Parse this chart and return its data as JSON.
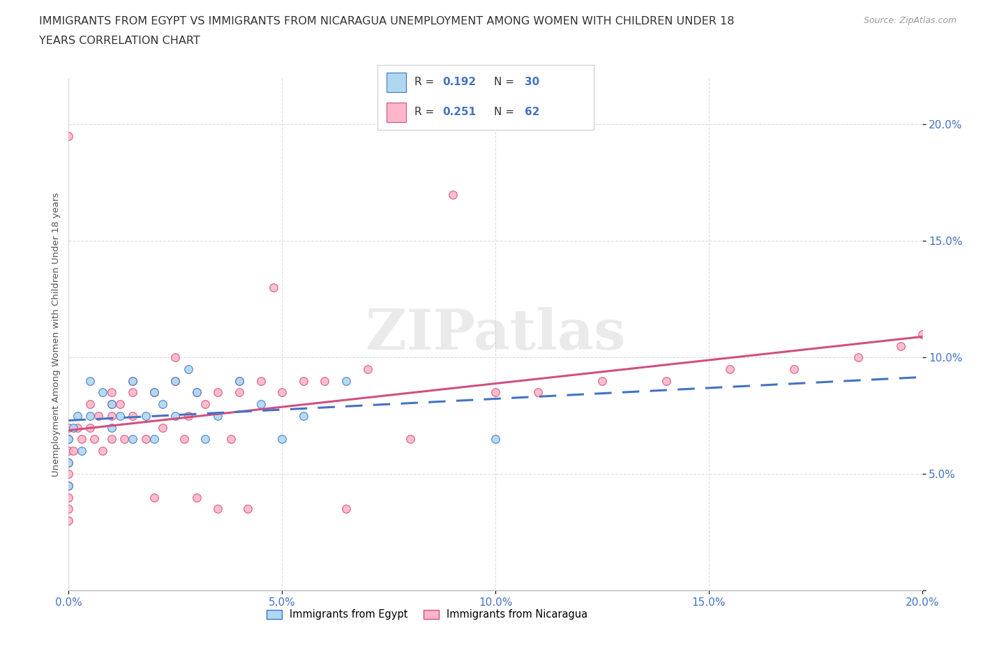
{
  "title": "IMMIGRANTS FROM EGYPT VS IMMIGRANTS FROM NICARAGUA UNEMPLOYMENT AMONG WOMEN WITH CHILDREN UNDER 18\nYEARS CORRELATION CHART",
  "source": "Source: ZipAtlas.com",
  "ylabel": "Unemployment Among Women with Children Under 18 years",
  "xlim": [
    0.0,
    0.2
  ],
  "ylim": [
    0.0,
    0.22
  ],
  "x_ticks": [
    0.0,
    0.05,
    0.1,
    0.15,
    0.2
  ],
  "y_ticks": [
    0.0,
    0.05,
    0.1,
    0.15,
    0.2
  ],
  "x_tick_labels": [
    "0.0%",
    "5.0%",
    "10.0%",
    "15.0%",
    "20.0%"
  ],
  "y_tick_labels": [
    "",
    "5.0%",
    "10.0%",
    "15.0%",
    "20.0%"
  ],
  "egypt_color": "#ADD8F0",
  "egypt_edge_color": "#4472C4",
  "nicaragua_color": "#FFB6C8",
  "nicaragua_edge_color": "#D05080",
  "egypt_R": 0.192,
  "egypt_N": 30,
  "nicaragua_R": 0.251,
  "nicaragua_N": 62,
  "egypt_line_color": "#4472C4",
  "nicaragua_line_color": "#D05080",
  "background_color": "#FFFFFF",
  "grid_color": "#DDDDDD",
  "watermark_text": "ZIPatlas",
  "egypt_x": [
    0.0,
    0.0,
    0.0,
    0.001,
    0.002,
    0.003,
    0.005,
    0.005,
    0.008,
    0.01,
    0.01,
    0.012,
    0.015,
    0.015,
    0.018,
    0.02,
    0.02,
    0.022,
    0.025,
    0.025,
    0.028,
    0.03,
    0.032,
    0.035,
    0.04,
    0.045,
    0.05,
    0.055,
    0.065,
    0.1
  ],
  "egypt_y": [
    0.065,
    0.055,
    0.045,
    0.07,
    0.075,
    0.06,
    0.09,
    0.075,
    0.085,
    0.08,
    0.07,
    0.075,
    0.09,
    0.065,
    0.075,
    0.085,
    0.065,
    0.08,
    0.09,
    0.075,
    0.095,
    0.085,
    0.065,
    0.075,
    0.09,
    0.08,
    0.065,
    0.075,
    0.09,
    0.065
  ],
  "nicaragua_x": [
    0.0,
    0.0,
    0.0,
    0.0,
    0.0,
    0.0,
    0.0,
    0.0,
    0.0,
    0.0,
    0.001,
    0.002,
    0.003,
    0.005,
    0.005,
    0.006,
    0.007,
    0.008,
    0.01,
    0.01,
    0.01,
    0.01,
    0.012,
    0.013,
    0.015,
    0.015,
    0.015,
    0.018,
    0.02,
    0.02,
    0.022,
    0.025,
    0.025,
    0.027,
    0.028,
    0.03,
    0.03,
    0.032,
    0.035,
    0.035,
    0.038,
    0.04,
    0.04,
    0.042,
    0.045,
    0.048,
    0.05,
    0.055,
    0.06,
    0.065,
    0.07,
    0.08,
    0.09,
    0.1,
    0.11,
    0.125,
    0.14,
    0.155,
    0.17,
    0.185,
    0.195,
    0.2
  ],
  "nicaragua_y": [
    0.195,
    0.07,
    0.065,
    0.06,
    0.055,
    0.05,
    0.045,
    0.04,
    0.035,
    0.03,
    0.06,
    0.07,
    0.065,
    0.08,
    0.07,
    0.065,
    0.075,
    0.06,
    0.085,
    0.08,
    0.075,
    0.065,
    0.08,
    0.065,
    0.09,
    0.085,
    0.075,
    0.065,
    0.085,
    0.04,
    0.07,
    0.1,
    0.09,
    0.065,
    0.075,
    0.085,
    0.04,
    0.08,
    0.085,
    0.035,
    0.065,
    0.09,
    0.085,
    0.035,
    0.09,
    0.13,
    0.085,
    0.09,
    0.09,
    0.035,
    0.095,
    0.065,
    0.17,
    0.085,
    0.085,
    0.09,
    0.09,
    0.095,
    0.095,
    0.1,
    0.105,
    0.11
  ]
}
